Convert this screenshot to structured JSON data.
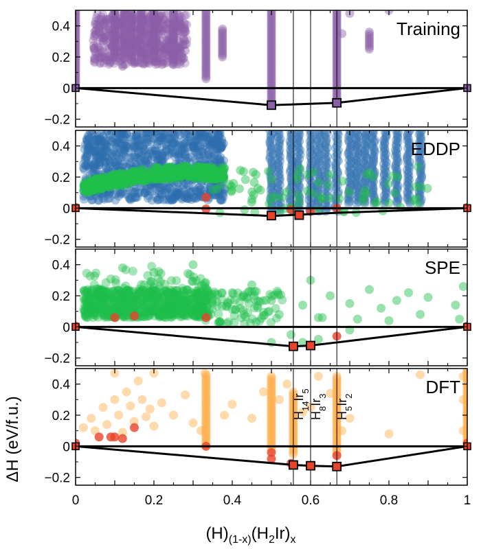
{
  "chart_data": {
    "type": "scatter",
    "xlabel": {
      "prefix": "(H)",
      "sub1": "(1-x)",
      "mid": "(H",
      "sub2": "2",
      "suffix": "Ir)",
      "sub3": "x"
    },
    "ylabel": "ΔH (eV/f.u.)",
    "xlim": [
      0,
      1
    ],
    "ylim": [
      -0.25,
      0.5
    ],
    "xticks": [
      0,
      0.2,
      0.4,
      0.6,
      0.8,
      1
    ],
    "xtick_labels": [
      "0",
      "0.2",
      "0.4",
      "0.6",
      "0.8",
      "1"
    ],
    "yticks": [
      -0.2,
      0,
      0.2,
      0.4
    ],
    "ytick_labels": [
      "−0.2",
      "0",
      "0.2",
      "0.4"
    ],
    "reference_lines_x": [
      0.556,
      0.6,
      0.667
    ],
    "compound_labels": [
      {
        "x": 0.556,
        "base": "H",
        "n1": "14",
        "el": "Ir",
        "n2": "5"
      },
      {
        "x": 0.6,
        "base": "H",
        "n1": "8",
        "el": "Ir",
        "n2": "3"
      },
      {
        "x": 0.667,
        "base": "H",
        "n1": "5",
        "el": "Ir",
        "n2": "2"
      }
    ],
    "colors": {
      "training": "#8b5fa8",
      "eddp": "#2e6db0",
      "spe": "#1fbf4a",
      "dft": "#ffae4a",
      "hull_point": "#e8442a"
    },
    "panels": [
      {
        "label": "Training",
        "hull": [
          [
            0,
            0
          ],
          [
            0.5,
            -0.11
          ],
          [
            0.667,
            -0.095
          ],
          [
            1,
            0
          ]
        ],
        "hull_markers": [
          [
            0.5,
            -0.11
          ],
          [
            0.667,
            -0.095
          ]
        ],
        "stripes": [
          [
            0.5,
            -0.1,
            0.5
          ],
          [
            0.667,
            -0.09,
            0.5
          ],
          [
            0.333,
            0.06,
            0.5
          ],
          [
            0.25,
            0.15,
            0.5
          ],
          [
            0.2,
            0.17,
            0.5
          ],
          [
            0.375,
            0.2,
            0.38
          ],
          [
            0.167,
            0.2,
            0.5
          ],
          [
            0.143,
            0.17,
            0.5
          ],
          [
            0.125,
            0.2,
            0.5
          ],
          [
            0.1,
            0.2,
            0.5
          ],
          [
            0.75,
            0.25,
            0.36
          ],
          [
            0.0,
            0.02,
            0.5
          ]
        ],
        "points": [
          [
            0.05,
            0.41
          ],
          [
            0.06,
            0.36
          ],
          [
            0.07,
            0.3
          ],
          [
            0.08,
            0.44
          ],
          [
            0.09,
            0.28
          ],
          [
            0.1,
            0.33
          ],
          [
            0.11,
            0.4
          ],
          [
            0.12,
            0.27
          ],
          [
            0.13,
            0.37
          ],
          [
            0.14,
            0.42
          ],
          [
            0.15,
            0.3
          ],
          [
            0.16,
            0.25
          ],
          [
            0.17,
            0.43
          ],
          [
            0.18,
            0.34
          ],
          [
            0.19,
            0.29
          ],
          [
            0.21,
            0.44
          ],
          [
            0.22,
            0.38
          ],
          [
            0.23,
            0.27
          ],
          [
            0.24,
            0.32
          ],
          [
            0.26,
            0.41
          ],
          [
            0.28,
            0.24
          ],
          [
            0.08,
            0.2
          ],
          [
            0.12,
            0.14
          ],
          [
            0.15,
            0.17
          ],
          [
            0.18,
            0.21
          ],
          [
            0.7,
            0.48
          ],
          [
            0.8,
            0.5
          ],
          [
            0.68,
            0.35
          ]
        ]
      },
      {
        "label": "EDDP",
        "hull": [
          [
            0,
            0
          ],
          [
            0.5,
            -0.05
          ],
          [
            0.667,
            -0.03
          ],
          [
            1,
            0
          ]
        ],
        "hull_markers": [
          [
            0.5,
            -0.048
          ],
          [
            0.571,
            -0.045
          ]
        ],
        "red_points": [
          [
            0,
            0.005
          ],
          [
            0.333,
            -0.005
          ],
          [
            0.333,
            0.07
          ],
          [
            0.55,
            -0.01
          ],
          [
            0.6,
            -0.02
          ],
          [
            0.667,
            0.0
          ],
          [
            1,
            0.005
          ]
        ],
        "band": true
      },
      {
        "label": "SPE",
        "hull": [
          [
            0,
            0
          ],
          [
            0.556,
            -0.125
          ],
          [
            0.6,
            -0.12
          ],
          [
            1,
            0
          ]
        ],
        "hull_markers": [
          [
            0.556,
            -0.125
          ],
          [
            0.6,
            -0.12
          ]
        ],
        "red_points": [
          [
            0,
            0.005
          ],
          [
            0.1,
            0.06
          ],
          [
            0.15,
            0.07
          ],
          [
            0.333,
            0.06
          ],
          [
            0.667,
            -0.06
          ],
          [
            1,
            0.005
          ]
        ],
        "points": [
          [
            0.35,
            0.18
          ],
          [
            0.4,
            0.22
          ],
          [
            0.42,
            0.12
          ],
          [
            0.45,
            0.27
          ],
          [
            0.5,
            0.17
          ],
          [
            0.52,
            0.08
          ],
          [
            0.58,
            0.14
          ],
          [
            0.6,
            0.3
          ],
          [
            0.63,
            0.06
          ],
          [
            0.65,
            0.2
          ],
          [
            0.7,
            0.15
          ],
          [
            0.72,
            0.05
          ],
          [
            0.75,
            0.24
          ],
          [
            0.78,
            0.12
          ],
          [
            0.8,
            0.04
          ],
          [
            0.82,
            0.17
          ],
          [
            0.85,
            0.22
          ],
          [
            0.88,
            0.08
          ],
          [
            0.9,
            0.19
          ],
          [
            0.55,
            -0.05
          ],
          [
            0.5,
            -0.1
          ],
          [
            0.58,
            -0.1
          ],
          [
            0.62,
            -0.08
          ],
          [
            0.7,
            -0.02
          ],
          [
            0.3,
            0.4
          ],
          [
            0.2,
            0.35
          ],
          [
            0.12,
            0.38
          ],
          [
            0.62,
            0.06
          ],
          [
            0.98,
            0.05
          ],
          [
            0.99,
            0.26
          ],
          [
            0.97,
            0.14
          ]
        ]
      },
      {
        "label": "DFT",
        "hull": [
          [
            0,
            0
          ],
          [
            0.556,
            -0.12
          ],
          [
            0.6,
            -0.125
          ],
          [
            0.667,
            -0.13
          ],
          [
            1,
            0
          ]
        ],
        "hull_markers": [
          [
            0.556,
            -0.12
          ],
          [
            0.6,
            -0.125
          ],
          [
            0.667,
            -0.13
          ]
        ],
        "red_points": [
          [
            0,
            0.02
          ],
          [
            0.06,
            0.06
          ],
          [
            0.09,
            0.06
          ],
          [
            0.1,
            0.06
          ],
          [
            0.333,
            0.0
          ],
          [
            0.5,
            -0.04
          ],
          [
            0.5,
            -0.08
          ],
          [
            0.55,
            -0.11
          ],
          [
            0.667,
            -0.06
          ],
          [
            1,
            0.02
          ],
          [
            0.15,
            0.12
          ],
          [
            0.12,
            0.05
          ]
        ],
        "points": [
          [
            0.02,
            0.12
          ],
          [
            0.04,
            0.18
          ],
          [
            0.05,
            0.1
          ],
          [
            0.07,
            0.25
          ],
          [
            0.08,
            0.14
          ],
          [
            0.1,
            0.3
          ],
          [
            0.11,
            0.2
          ],
          [
            0.12,
            0.09
          ],
          [
            0.13,
            0.35
          ],
          [
            0.14,
            0.26
          ],
          [
            0.15,
            0.16
          ],
          [
            0.16,
            0.42
          ],
          [
            0.17,
            0.3
          ],
          [
            0.18,
            0.19
          ],
          [
            0.19,
            0.24
          ],
          [
            0.2,
            0.13
          ],
          [
            0.22,
            0.28
          ],
          [
            0.25,
            0.2
          ],
          [
            0.28,
            0.33
          ],
          [
            0.3,
            0.15
          ],
          [
            0.32,
            0.1
          ],
          [
            0.38,
            0.2
          ],
          [
            0.4,
            0.27
          ],
          [
            0.45,
            0.18
          ],
          [
            0.48,
            0.35
          ],
          [
            0.52,
            0.3
          ],
          [
            0.54,
            0.4
          ],
          [
            0.58,
            0.22
          ],
          [
            0.6,
            0.25
          ],
          [
            0.62,
            0.45
          ],
          [
            0.65,
            0.34
          ],
          [
            0.68,
            0.1
          ],
          [
            0.7,
            0.18
          ],
          [
            0.8,
            0.08
          ],
          [
            0.88,
            0.46
          ],
          [
            0.99,
            0.1
          ],
          [
            0.99,
            0.3
          ],
          [
            0.99,
            0.45
          ],
          [
            0.1,
            0.47
          ],
          [
            0.2,
            0.47
          ],
          [
            0.33,
            0.47
          ]
        ],
        "stripes": [
          [
            0.333,
            0.0,
            0.46
          ],
          [
            0.5,
            -0.02,
            0.45
          ],
          [
            0.556,
            -0.05,
            0.35
          ],
          [
            0.667,
            -0.05,
            0.45
          ],
          [
            1.0,
            0.0,
            0.5
          ]
        ]
      }
    ]
  }
}
